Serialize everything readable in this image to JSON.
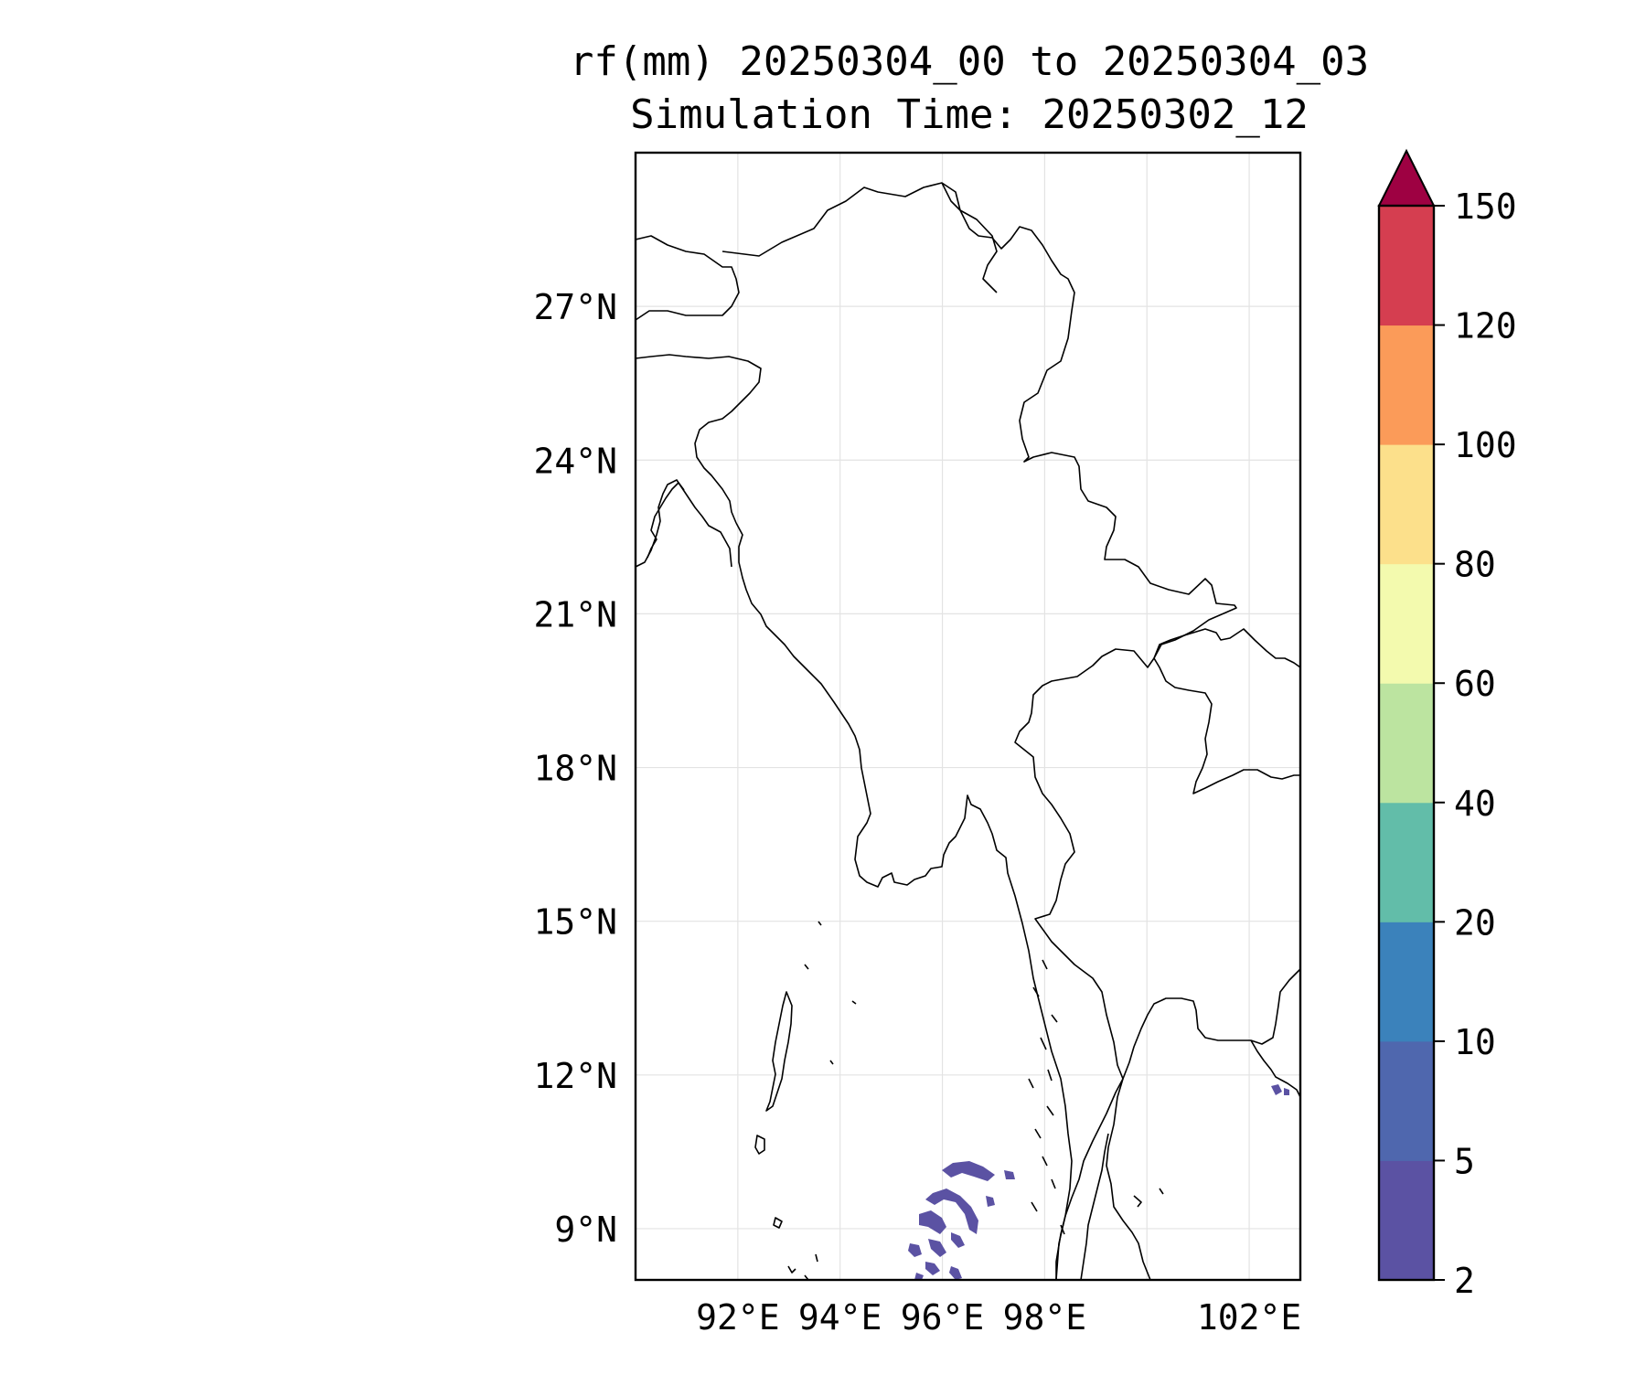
{
  "title": {
    "line1": "rf(mm) 20250304_00 to 20250304_03",
    "line2": "Simulation Time: 20250302_12"
  },
  "map": {
    "lon_range": [
      90.0,
      103.0
    ],
    "lat_range": [
      8.0,
      30.0
    ],
    "lat_ticks": [
      {
        "value": 27,
        "label": "27°N"
      },
      {
        "value": 24,
        "label": "24°N"
      },
      {
        "value": 21,
        "label": "21°N"
      },
      {
        "value": 18,
        "label": "18°N"
      },
      {
        "value": 15,
        "label": "15°N"
      },
      {
        "value": 12,
        "label": "12°N"
      },
      {
        "value": 9,
        "label": "9°N"
      }
    ],
    "lon_ticks": [
      {
        "value": 92,
        "label": "92°E"
      },
      {
        "value": 94,
        "label": "94°E"
      },
      {
        "value": 96,
        "label": "96°E"
      },
      {
        "value": 98,
        "label": "98°E"
      },
      {
        "value": 102,
        "label": "102°E"
      }
    ],
    "gridlines": true,
    "grid_lon": [
      92,
      94,
      96,
      98,
      100,
      102
    ],
    "grid_lat": [
      9,
      12,
      15,
      18,
      21,
      24,
      27
    ]
  },
  "colorbar": {
    "labels": [
      "2",
      "5",
      "10",
      "20",
      "40",
      "60",
      "80",
      "100",
      "120",
      "150"
    ],
    "colors": [
      "#5b52a3",
      "#4f67ae",
      "#3b82bb",
      "#62bda9",
      "#bce4a0",
      "#f3faae",
      "#fce08b",
      "#fb9b59",
      "#d53e50"
    ],
    "extend_color": "#9e0142",
    "extend": "max"
  },
  "precip_color": "#5b52a3"
}
